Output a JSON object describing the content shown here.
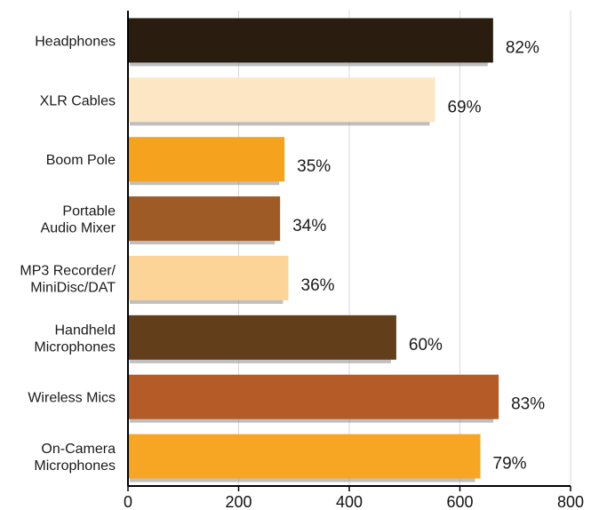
{
  "chart_data": {
    "type": "bar",
    "orientation": "horizontal",
    "categories": [
      [
        "Headphones"
      ],
      [
        "XLR Cables"
      ],
      [
        "Boom Pole"
      ],
      [
        "Portable",
        "Audio Mixer"
      ],
      [
        "MP3 Recorder/",
        "MiniDisc/DAT"
      ],
      [
        "Handheld",
        "Microphones"
      ],
      [
        "Wireless Mics"
      ],
      [
        "On-Camera",
        "Microphones"
      ]
    ],
    "values": [
      660,
      555,
      283,
      275,
      290,
      485,
      670,
      637
    ],
    "data_labels": [
      "82%",
      "69%",
      "35%",
      "34%",
      "36%",
      "60%",
      "83%",
      "79%"
    ],
    "bar_colors": [
      "#2a1d10",
      "#fde6c4",
      "#f5a31e",
      "#9f5b26",
      "#fdd497",
      "#633e1a",
      "#b45b27",
      "#f7a623"
    ],
    "x_ticks": [
      "0",
      "200",
      "400",
      "600",
      "800"
    ],
    "xlim": [
      0,
      800
    ],
    "grid": true,
    "title": "",
    "xlabel": "",
    "ylabel": ""
  }
}
